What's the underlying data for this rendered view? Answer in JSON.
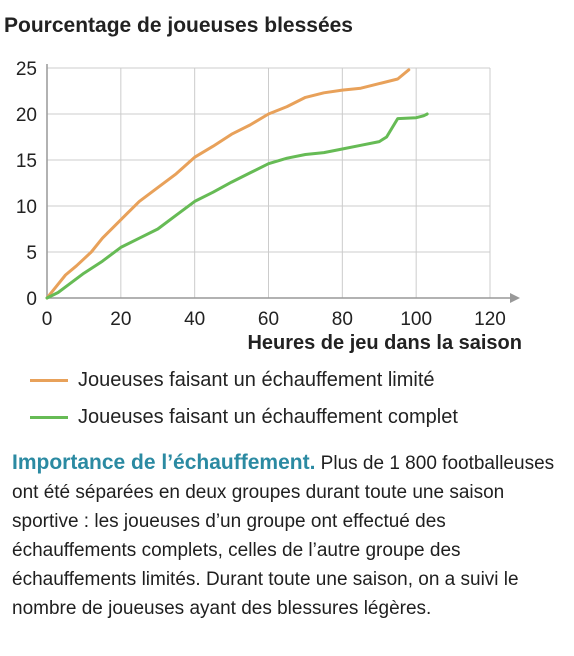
{
  "chart_data": {
    "type": "line",
    "title": "Pourcentage de joueuses blessées",
    "xlabel": "Heures de jeu dans la saison",
    "ylabel": "",
    "xlim": [
      0,
      120
    ],
    "ylim": [
      0,
      25
    ],
    "xticks": [
      "0",
      "20",
      "40",
      "60",
      "80",
      "100",
      "120"
    ],
    "yticks": [
      "0",
      "5",
      "10",
      "15",
      "20",
      "25"
    ],
    "grid": true,
    "legend_position": "bottom",
    "series": [
      {
        "name": "Joueuses faisant un échauffement limité",
        "color": "#e8a15a",
        "x": [
          0,
          2,
          5,
          8,
          12,
          15,
          20,
          25,
          30,
          35,
          40,
          45,
          50,
          55,
          60,
          65,
          70,
          75,
          80,
          85,
          90,
          95,
          98
        ],
        "y": [
          0,
          1,
          2.5,
          3.5,
          5,
          6.5,
          8.5,
          10.5,
          12,
          13.5,
          15.3,
          16.5,
          17.8,
          18.8,
          20,
          20.8,
          21.8,
          22.3,
          22.6,
          22.8,
          23.3,
          23.8,
          24.8
        ]
      },
      {
        "name": "Joueuses faisant un échauffement complet",
        "color": "#66bb55",
        "x": [
          0,
          3,
          6,
          10,
          15,
          20,
          25,
          30,
          35,
          40,
          45,
          50,
          55,
          60,
          65,
          70,
          75,
          80,
          85,
          90,
          92,
          95,
          100,
          102,
          103
        ],
        "y": [
          0,
          0.6,
          1.5,
          2.7,
          4,
          5.5,
          6.5,
          7.5,
          9,
          10.5,
          11.5,
          12.6,
          13.6,
          14.6,
          15.2,
          15.6,
          15.8,
          16.2,
          16.6,
          17,
          17.5,
          19.5,
          19.6,
          19.8,
          20
        ]
      }
    ]
  },
  "caption": {
    "title": "Importance de l’échauffement.",
    "body": " Plus de 1 800 footballeuses ont été séparées en deux groupes durant toute une saison sportive : les joueuses d’un groupe ont effectué des échauffements complets, celles de l’autre groupe des échauffements limités. Durant toute une saison, on a suivi le nombre de joueuses ayant des blessures légères."
  },
  "colors": {
    "grid": "#cccccc",
    "axis": "#999999",
    "caption_title": "#2b8aa2"
  }
}
